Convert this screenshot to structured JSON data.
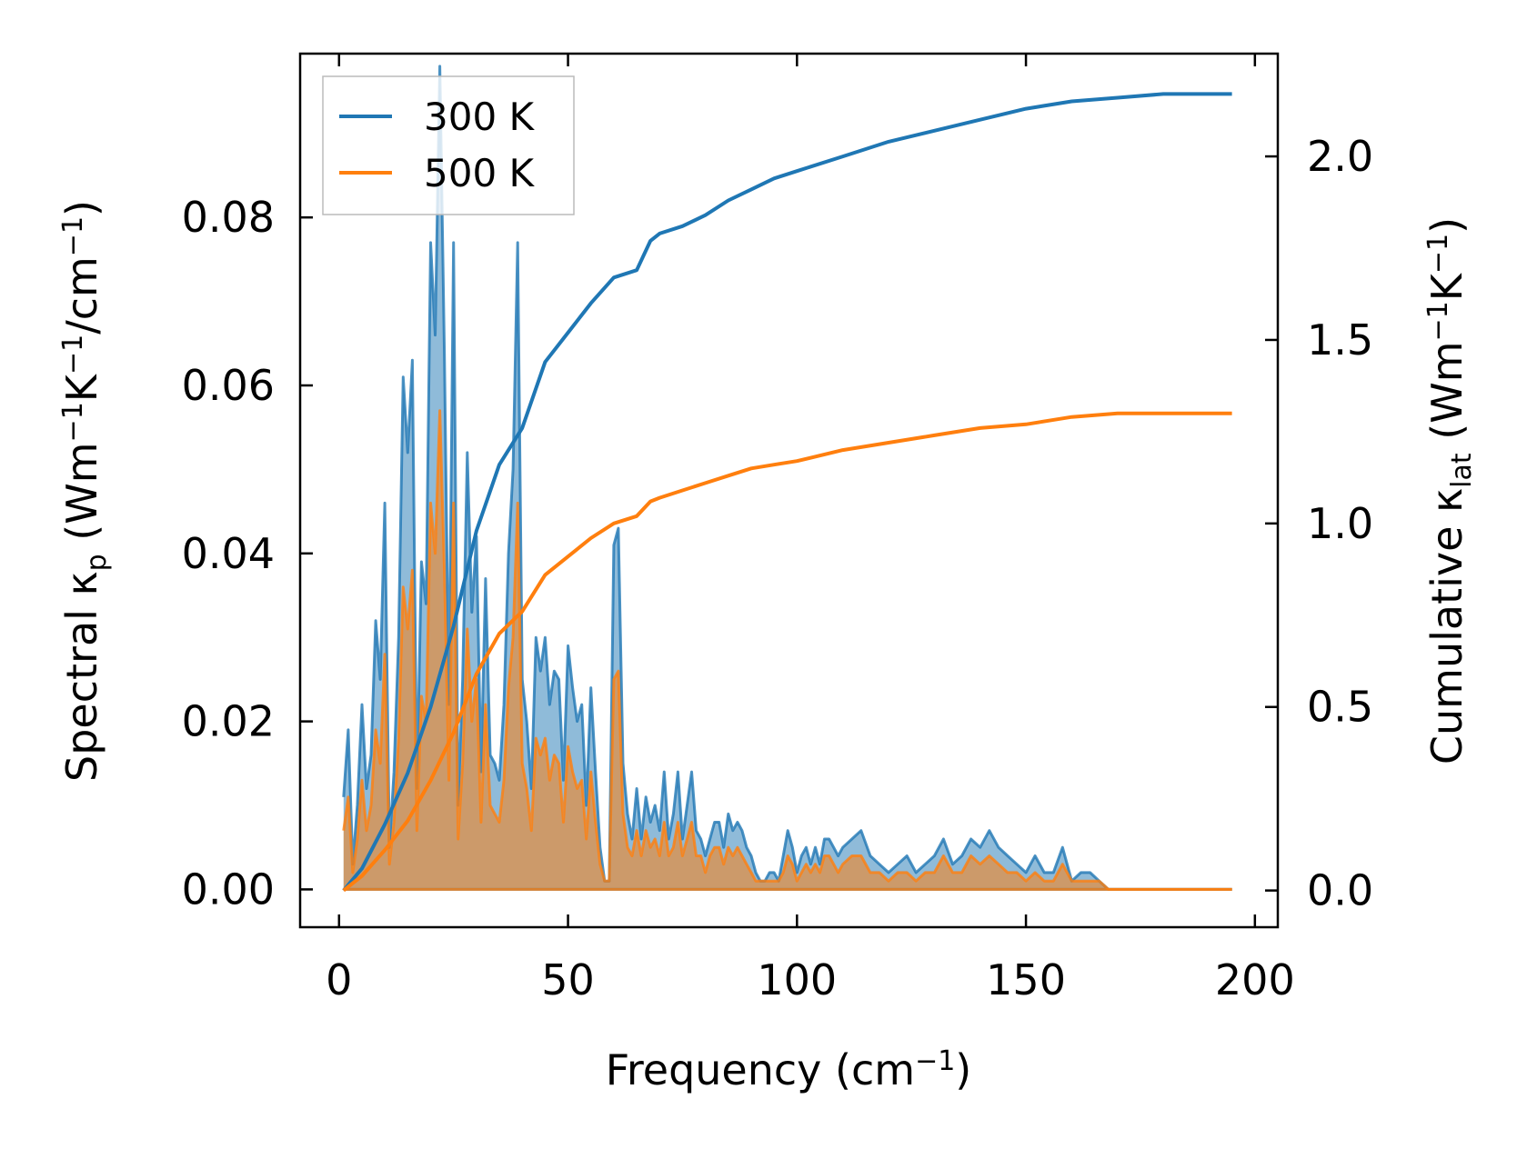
{
  "chart_data": {
    "type": "area",
    "title": "",
    "xlabel": "Frequency (cm⁻¹)",
    "ylabel_left": "Spectral κₚ (Wm⁻¹K⁻¹/cm⁻¹)",
    "ylabel_right": "Cumulative κ_lat (Wm⁻¹K⁻¹)",
    "xlim": [
      -8.5,
      205
    ],
    "ylim_left": [
      -0.0045,
      0.0995
    ],
    "ylim_right": [
      -0.1,
      2.28
    ],
    "x_ticks": [
      "0",
      "50",
      "100",
      "150",
      "200"
    ],
    "x_tick_values": [
      0,
      50,
      100,
      150,
      200
    ],
    "y_left_ticks": [
      "0.00",
      "0.02",
      "0.04",
      "0.06",
      "0.08"
    ],
    "y_left_tick_values": [
      0,
      0.02,
      0.04,
      0.06,
      0.08
    ],
    "y_right_ticks": [
      "0.0",
      "0.5",
      "1.0",
      "1.5",
      "2.0"
    ],
    "y_right_tick_values": [
      0,
      0.5,
      1.0,
      1.5,
      2.0
    ],
    "grid": false,
    "legend_position": "top-left",
    "series": [
      {
        "name": "300 K",
        "color": "#1f77b4",
        "spectral": {
          "x": [
            1,
            2,
            3,
            4,
            5,
            6,
            7,
            8,
            9,
            10,
            11,
            12,
            13,
            14,
            15,
            16,
            17,
            18,
            19,
            20,
            21,
            22,
            23,
            24,
            25,
            26,
            27,
            28,
            29,
            30,
            31,
            32,
            33,
            34,
            35,
            36,
            37,
            38,
            39,
            40,
            41,
            42,
            43,
            44,
            45,
            46,
            47,
            48,
            49,
            50,
            51,
            52,
            53,
            54,
            55,
            56,
            57,
            58,
            59,
            60,
            61,
            62,
            63,
            64,
            65,
            66,
            67,
            68,
            69,
            70,
            71,
            72,
            73,
            74,
            75,
            76,
            77,
            78,
            79,
            80,
            81,
            82,
            83,
            84,
            85,
            86,
            87,
            88,
            89,
            90,
            91,
            92,
            93,
            94,
            95,
            96,
            97,
            98,
            99,
            100,
            101,
            102,
            103,
            104,
            105,
            106,
            107,
            108,
            109,
            110,
            112,
            114,
            116,
            118,
            120,
            122,
            124,
            126,
            128,
            130,
            132,
            134,
            136,
            138,
            140,
            142,
            144,
            146,
            148,
            150,
            152,
            154,
            156,
            158,
            160,
            162,
            164,
            166,
            168,
            170,
            172,
            174,
            176,
            178,
            180,
            182,
            185,
            190,
            195
          ],
          "y": [
            0.011,
            0.019,
            0.003,
            0.01,
            0.022,
            0.012,
            0.016,
            0.032,
            0.025,
            0.046,
            0.005,
            0.014,
            0.03,
            0.061,
            0.052,
            0.063,
            0.012,
            0.039,
            0.034,
            0.077,
            0.066,
            0.098,
            0.064,
            0.022,
            0.077,
            0.01,
            0.025,
            0.052,
            0.033,
            0.042,
            0.014,
            0.037,
            0.016,
            0.015,
            0.013,
            0.022,
            0.04,
            0.05,
            0.077,
            0.025,
            0.02,
            0.012,
            0.03,
            0.026,
            0.03,
            0.022,
            0.026,
            0.025,
            0.013,
            0.029,
            0.024,
            0.02,
            0.022,
            0.01,
            0.024,
            0.014,
            0.005,
            0.001,
            0.001,
            0.041,
            0.043,
            0.015,
            0.009,
            0.006,
            0.012,
            0.006,
            0.011,
            0.008,
            0.01,
            0.007,
            0.014,
            0.006,
            0.009,
            0.014,
            0.006,
            0.01,
            0.014,
            0.007,
            0.006,
            0.004,
            0.006,
            0.008,
            0.008,
            0.005,
            0.009,
            0.007,
            0.008,
            0.007,
            0.005,
            0.004,
            0.002,
            0.001,
            0.001,
            0.002,
            0.002,
            0.001,
            0.004,
            0.007,
            0.005,
            0.002,
            0.004,
            0.005,
            0.003,
            0.005,
            0.003,
            0.006,
            0.006,
            0.005,
            0.004,
            0.005,
            0.006,
            0.007,
            0.004,
            0.003,
            0.002,
            0.003,
            0.004,
            0.002,
            0.003,
            0.004,
            0.006,
            0.003,
            0.004,
            0.006,
            0.005,
            0.007,
            0.005,
            0.004,
            0.003,
            0.002,
            0.004,
            0.002,
            0.002,
            0.005,
            0.001,
            0.002,
            0.002,
            0.001,
            0.0,
            0.0,
            0.0,
            0.0,
            0.0,
            0.0,
            0.0,
            0.0,
            0.0,
            0.0,
            0.0
          ]
        },
        "cumulative": {
          "x": [
            1,
            5,
            10,
            15,
            20,
            25,
            30,
            35,
            40,
            45,
            50,
            55,
            60,
            65,
            68,
            70,
            75,
            80,
            85,
            90,
            95,
            100,
            110,
            120,
            130,
            140,
            150,
            160,
            170,
            180,
            195
          ],
          "y": [
            0.0,
            0.06,
            0.18,
            0.32,
            0.5,
            0.72,
            0.98,
            1.16,
            1.26,
            1.44,
            1.52,
            1.6,
            1.67,
            1.69,
            1.77,
            1.79,
            1.81,
            1.84,
            1.88,
            1.91,
            1.94,
            1.96,
            2.0,
            2.04,
            2.07,
            2.1,
            2.13,
            2.15,
            2.16,
            2.17,
            2.17
          ]
        }
      },
      {
        "name": "500 K",
        "color": "#ff7f0e",
        "spectral": {
          "x": [
            1,
            2,
            3,
            4,
            5,
            6,
            7,
            8,
            9,
            10,
            11,
            12,
            13,
            14,
            15,
            16,
            17,
            18,
            19,
            20,
            21,
            22,
            23,
            24,
            25,
            26,
            27,
            28,
            29,
            30,
            31,
            32,
            33,
            34,
            35,
            36,
            37,
            38,
            39,
            40,
            41,
            42,
            43,
            44,
            45,
            46,
            47,
            48,
            49,
            50,
            51,
            52,
            53,
            54,
            55,
            56,
            57,
            58,
            59,
            60,
            61,
            62,
            63,
            64,
            65,
            66,
            67,
            68,
            69,
            70,
            71,
            72,
            73,
            74,
            75,
            76,
            77,
            78,
            79,
            80,
            81,
            82,
            83,
            84,
            85,
            86,
            87,
            88,
            89,
            90,
            91,
            92,
            93,
            94,
            95,
            96,
            97,
            98,
            99,
            100,
            101,
            102,
            103,
            104,
            105,
            106,
            107,
            108,
            109,
            110,
            112,
            114,
            116,
            118,
            120,
            122,
            124,
            126,
            128,
            130,
            132,
            134,
            136,
            138,
            140,
            142,
            144,
            146,
            148,
            150,
            152,
            154,
            156,
            158,
            160,
            162,
            164,
            166,
            168,
            170,
            172,
            174,
            176,
            178,
            180,
            182,
            185,
            190,
            195
          ],
          "y": [
            0.007,
            0.011,
            0.002,
            0.006,
            0.013,
            0.007,
            0.01,
            0.019,
            0.015,
            0.028,
            0.003,
            0.008,
            0.018,
            0.036,
            0.031,
            0.038,
            0.007,
            0.023,
            0.02,
            0.046,
            0.04,
            0.057,
            0.038,
            0.013,
            0.046,
            0.006,
            0.015,
            0.031,
            0.02,
            0.025,
            0.008,
            0.022,
            0.01,
            0.009,
            0.008,
            0.013,
            0.024,
            0.03,
            0.046,
            0.015,
            0.012,
            0.007,
            0.018,
            0.016,
            0.018,
            0.013,
            0.016,
            0.015,
            0.008,
            0.017,
            0.014,
            0.012,
            0.013,
            0.006,
            0.014,
            0.008,
            0.003,
            0.001,
            0.001,
            0.025,
            0.026,
            0.009,
            0.005,
            0.004,
            0.007,
            0.004,
            0.007,
            0.005,
            0.006,
            0.004,
            0.008,
            0.004,
            0.005,
            0.008,
            0.004,
            0.006,
            0.008,
            0.004,
            0.004,
            0.002,
            0.004,
            0.005,
            0.005,
            0.003,
            0.005,
            0.004,
            0.005,
            0.004,
            0.003,
            0.002,
            0.001,
            0.001,
            0.001,
            0.001,
            0.001,
            0.001,
            0.002,
            0.004,
            0.003,
            0.001,
            0.002,
            0.003,
            0.002,
            0.003,
            0.002,
            0.004,
            0.004,
            0.003,
            0.002,
            0.003,
            0.004,
            0.004,
            0.002,
            0.002,
            0.001,
            0.002,
            0.002,
            0.001,
            0.002,
            0.002,
            0.004,
            0.002,
            0.002,
            0.004,
            0.003,
            0.004,
            0.003,
            0.002,
            0.002,
            0.001,
            0.002,
            0.001,
            0.001,
            0.003,
            0.001,
            0.001,
            0.001,
            0.001,
            0.0,
            0.0,
            0.0,
            0.0,
            0.0,
            0.0,
            0.0,
            0.0,
            0.0,
            0.0,
            0.0
          ]
        },
        "cumulative": {
          "x": [
            1,
            5,
            10,
            15,
            20,
            25,
            30,
            35,
            40,
            45,
            50,
            55,
            60,
            65,
            68,
            70,
            75,
            80,
            85,
            90,
            95,
            100,
            110,
            120,
            130,
            140,
            150,
            160,
            170,
            180,
            195
          ],
          "y": [
            0.0,
            0.04,
            0.11,
            0.19,
            0.3,
            0.43,
            0.59,
            0.7,
            0.76,
            0.86,
            0.91,
            0.96,
            1.0,
            1.02,
            1.06,
            1.07,
            1.09,
            1.11,
            1.13,
            1.15,
            1.16,
            1.17,
            1.2,
            1.22,
            1.24,
            1.26,
            1.27,
            1.29,
            1.3,
            1.3,
            1.3
          ]
        }
      }
    ]
  }
}
